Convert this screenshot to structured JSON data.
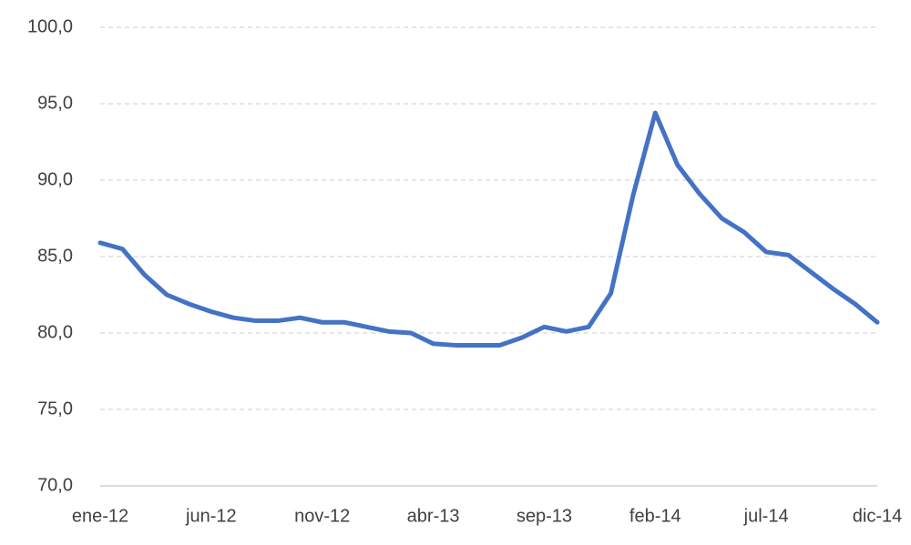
{
  "chart_data": {
    "type": "line",
    "categories": [
      "ene-12",
      null,
      null,
      null,
      null,
      "jun-12",
      null,
      null,
      null,
      null,
      "nov-12",
      null,
      null,
      null,
      null,
      "abr-13",
      null,
      null,
      null,
      null,
      "sep-13",
      null,
      null,
      null,
      null,
      "feb-14",
      null,
      null,
      null,
      null,
      "jul-14",
      null,
      null,
      null,
      null,
      "dic-14"
    ],
    "series": [
      {
        "color": "#4472c4",
        "values": [
          85.9,
          85.5,
          83.8,
          82.5,
          81.9,
          81.4,
          81.0,
          80.8,
          80.8,
          81.0,
          80.7,
          80.7,
          80.4,
          80.1,
          80.0,
          79.3,
          79.2,
          79.2,
          79.2,
          79.7,
          80.4,
          80.1,
          80.4,
          82.6,
          89.0,
          94.4,
          91.0,
          89.1,
          87.5,
          86.6,
          85.3,
          85.1,
          84.0,
          82.9,
          81.9,
          80.7
        ]
      }
    ],
    "ylim": [
      70,
      100
    ],
    "yticks": [
      {
        "value": 70,
        "label": "70,0"
      },
      {
        "value": 75,
        "label": "75,0"
      },
      {
        "value": 80,
        "label": "80,0"
      },
      {
        "value": 85,
        "label": "85,0"
      },
      {
        "value": 90,
        "label": "90,0"
      },
      {
        "value": 95,
        "label": "95,0"
      },
      {
        "value": 100,
        "label": "100,0"
      }
    ],
    "grid": true
  }
}
